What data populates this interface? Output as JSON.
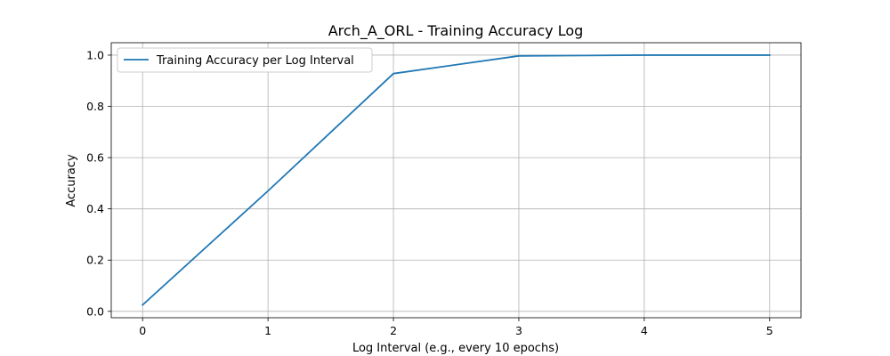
{
  "chart_data": {
    "type": "line",
    "title": "Arch_A_ORL - Training Accuracy Log",
    "xlabel": "Log Interval (e.g., every 10 epochs)",
    "ylabel": "Accuracy",
    "x": [
      0,
      1,
      2,
      3,
      4,
      5
    ],
    "series": [
      {
        "name": "Training Accuracy per Log Interval",
        "values": [
          0.025,
          0.47,
          0.928,
          0.997,
          1.0,
          1.0
        ],
        "color": "#1f77b4"
      }
    ],
    "xticks": [
      "0",
      "1",
      "2",
      "3",
      "4",
      "5"
    ],
    "yticks": [
      "0.0",
      "0.2",
      "0.4",
      "0.6",
      "0.8",
      "1.0"
    ],
    "xlim": [
      -0.25,
      5.25
    ],
    "ylim": [
      -0.025,
      1.0485
    ],
    "grid": true,
    "legend_position": "top-left"
  }
}
